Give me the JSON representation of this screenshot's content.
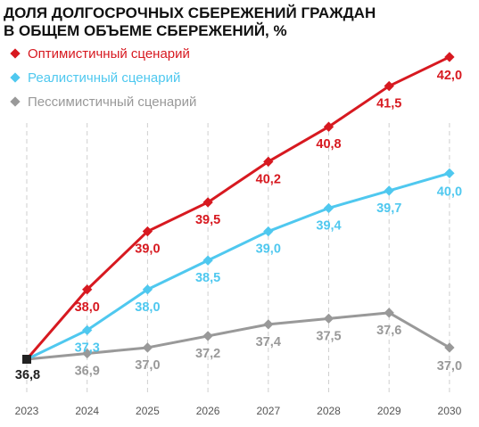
{
  "title_lines": [
    "ДОЛЯ ДОЛГОСРОЧНЫХ СБЕРЕЖЕНИЙ ГРАЖДАН",
    "В ОБЩЕМ ОБЪЕМЕ СБЕРЕЖЕНИЙ, %"
  ],
  "chart_data": {
    "type": "line",
    "title": "ДОЛЯ ДОЛГОСРОЧНЫХ СБЕРЕЖЕНИЙ ГРАЖДАН В ОБЩЕМ ОБЪЕМЕ СБЕРЕЖЕНИЙ, %",
    "categories": [
      "2023",
      "2024",
      "2025",
      "2026",
      "2027",
      "2028",
      "2029",
      "2030"
    ],
    "xlabel": "",
    "ylabel": "",
    "ylim": [
      36.5,
      42.6
    ],
    "grid": "vertical dashed",
    "legend_position": "top-left",
    "start_value": 36.8,
    "start_label": "36,8",
    "start_color": "#222222",
    "series": [
      {
        "name": "Оптимистичный сценарий",
        "color": "#d71920",
        "values": [
          36.8,
          38.0,
          39.0,
          39.5,
          40.2,
          40.8,
          41.5,
          42.0
        ],
        "labels": [
          "",
          "38,0",
          "39,0",
          "39,5",
          "40,2",
          "40,8",
          "41,5",
          "42,0"
        ],
        "label_position": "below"
      },
      {
        "name": "Реалистичный сценарий",
        "color": "#4fc8ef",
        "values": [
          36.8,
          37.3,
          38.0,
          38.5,
          39.0,
          39.4,
          39.7,
          40.0
        ],
        "labels": [
          "",
          "37,3",
          "38,0",
          "38,5",
          "39,0",
          "39,4",
          "39,7",
          "40,0"
        ],
        "label_position": "below"
      },
      {
        "name": "Пессимистичный сценарий",
        "color": "#999999",
        "values": [
          36.8,
          36.9,
          37.0,
          37.2,
          37.4,
          37.5,
          37.6,
          37.0
        ],
        "labels": [
          "",
          "36,9",
          "37,0",
          "37,2",
          "37,4",
          "37,5",
          "37,6",
          "37,0"
        ],
        "label_position": "below"
      }
    ]
  }
}
